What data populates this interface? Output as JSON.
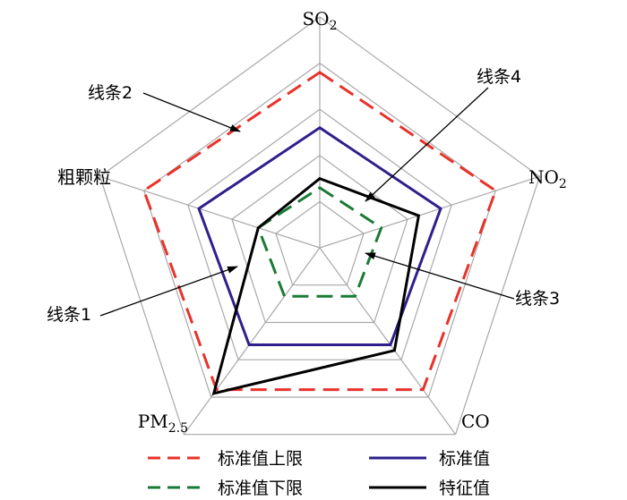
{
  "chart_data": {
    "type": "radar",
    "axes": [
      {
        "label": "SO",
        "sub": "2"
      },
      {
        "label": "NO",
        "sub": "2"
      },
      {
        "label": "CO",
        "sub": ""
      },
      {
        "label": "PM",
        "sub": "2.5"
      },
      {
        "label": "粗颗粒",
        "sub": ""
      }
    ],
    "grid_levels": [
      0.2,
      0.4,
      0.6,
      0.8,
      1.0
    ],
    "range": [
      0,
      1
    ],
    "series": [
      {
        "name": "标准值上限",
        "color": "#e8322a",
        "dash": "dashed",
        "values": [
          0.76,
          0.8,
          0.76,
          0.76,
          0.8
        ]
      },
      {
        "name": "标准值",
        "color": "#2e1f8c",
        "dash": "solid",
        "values": [
          0.52,
          0.55,
          0.52,
          0.52,
          0.55
        ]
      },
      {
        "name": "标准值下限",
        "color": "#1a7a35",
        "dash": "dashed",
        "values": [
          0.26,
          0.28,
          0.26,
          0.26,
          0.28
        ]
      },
      {
        "name": "特征值",
        "color": "#000000",
        "dash": "solid",
        "values": [
          0.3,
          0.45,
          0.55,
          0.78,
          0.28
        ]
      }
    ],
    "annotations": [
      {
        "label": "线条1"
      },
      {
        "label": "线条2"
      },
      {
        "label": "线条3"
      },
      {
        "label": "线条4"
      }
    ],
    "legend": {
      "placement": "bottom",
      "columns": 2
    }
  }
}
